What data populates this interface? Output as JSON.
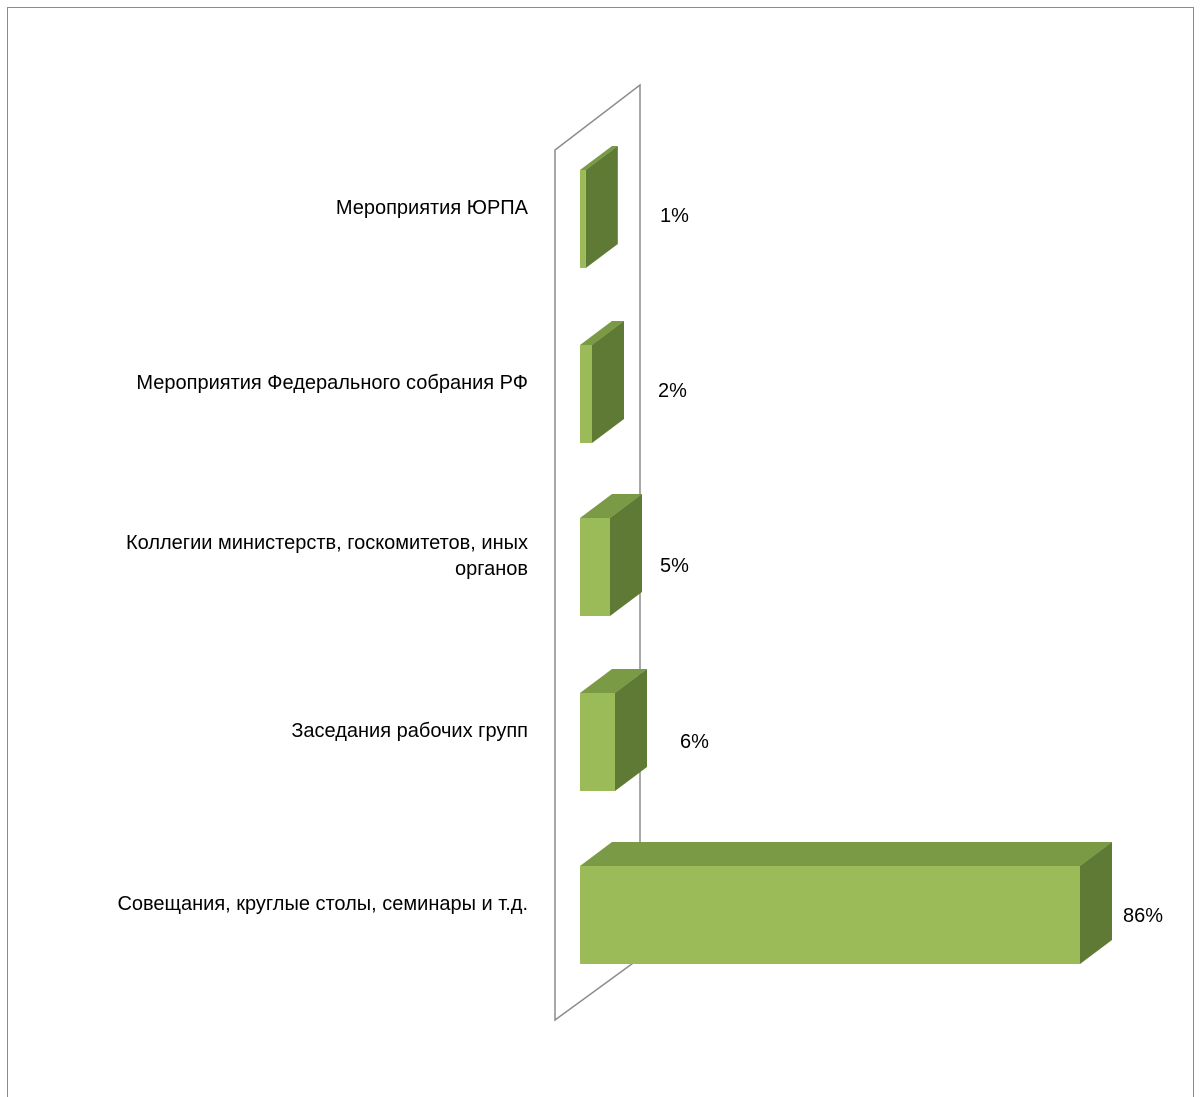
{
  "chart_data": {
    "type": "bar",
    "orientation": "horizontal",
    "style": "3d",
    "categories": [
      "Мероприятия ЮРПА",
      "Мероприятия Федерального собрания РФ",
      "Коллегии министерств, госкомитетов, иных органов",
      "Заседания рабочих групп",
      "Совещания, круглые столы, семинары и т.д."
    ],
    "category_label_lines": [
      [
        "Мероприятия ЮРПА"
      ],
      [
        "Мероприятия Федерального собрания РФ"
      ],
      [
        "Коллегии министерств, госкомитетов, иных",
        "органов"
      ],
      [
        "Заседания рабочих групп"
      ],
      [
        "Совещания, круглые столы, семинары и т.д."
      ]
    ],
    "values": [
      1,
      2,
      5,
      6,
      86
    ],
    "data_labels": [
      "1%",
      "2%",
      "5%",
      "6%",
      "86%"
    ],
    "unit": "%",
    "xlim": [
      0,
      86
    ],
    "grid": false,
    "legend": "none",
    "colors": {
      "front": "#9bbb59",
      "top": "#7a9a46",
      "side": "#5f7a35",
      "wall": "#8c8c8c"
    }
  }
}
